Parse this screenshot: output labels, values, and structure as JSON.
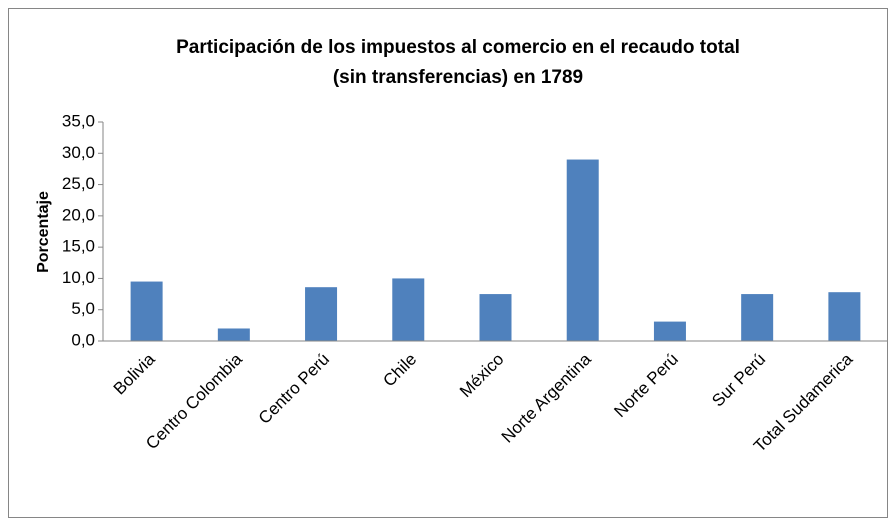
{
  "chart_data": {
    "type": "bar",
    "title": [
      "Participación de los impuestos al comercio en el recaudo total",
      "(sin transferencias) en 1789"
    ],
    "y_label": "Porcentaje",
    "categories": [
      "Bolivia",
      "Centro Colombia",
      "Centro Perú",
      "Chile",
      "México",
      "Norte Argentina",
      "Norte Perú",
      "Sur Perú",
      "Total Sudamerica"
    ],
    "values": [
      9.5,
      2.0,
      8.6,
      10.0,
      7.5,
      29.0,
      3.1,
      7.5,
      7.8
    ],
    "color": "#4f81bd",
    "ylim": [
      0,
      35
    ],
    "yticks": [
      {
        "value": 0,
        "label": "0,0"
      },
      {
        "value": 5,
        "label": "5,0"
      },
      {
        "value": 10,
        "label": "10,0"
      },
      {
        "value": 15,
        "label": "15,0"
      },
      {
        "value": 20,
        "label": "20,0"
      },
      {
        "value": 25,
        "label": "25,0"
      },
      {
        "value": 30,
        "label": "30,0"
      },
      {
        "value": 35,
        "label": "35,0"
      }
    ],
    "grid": false
  }
}
